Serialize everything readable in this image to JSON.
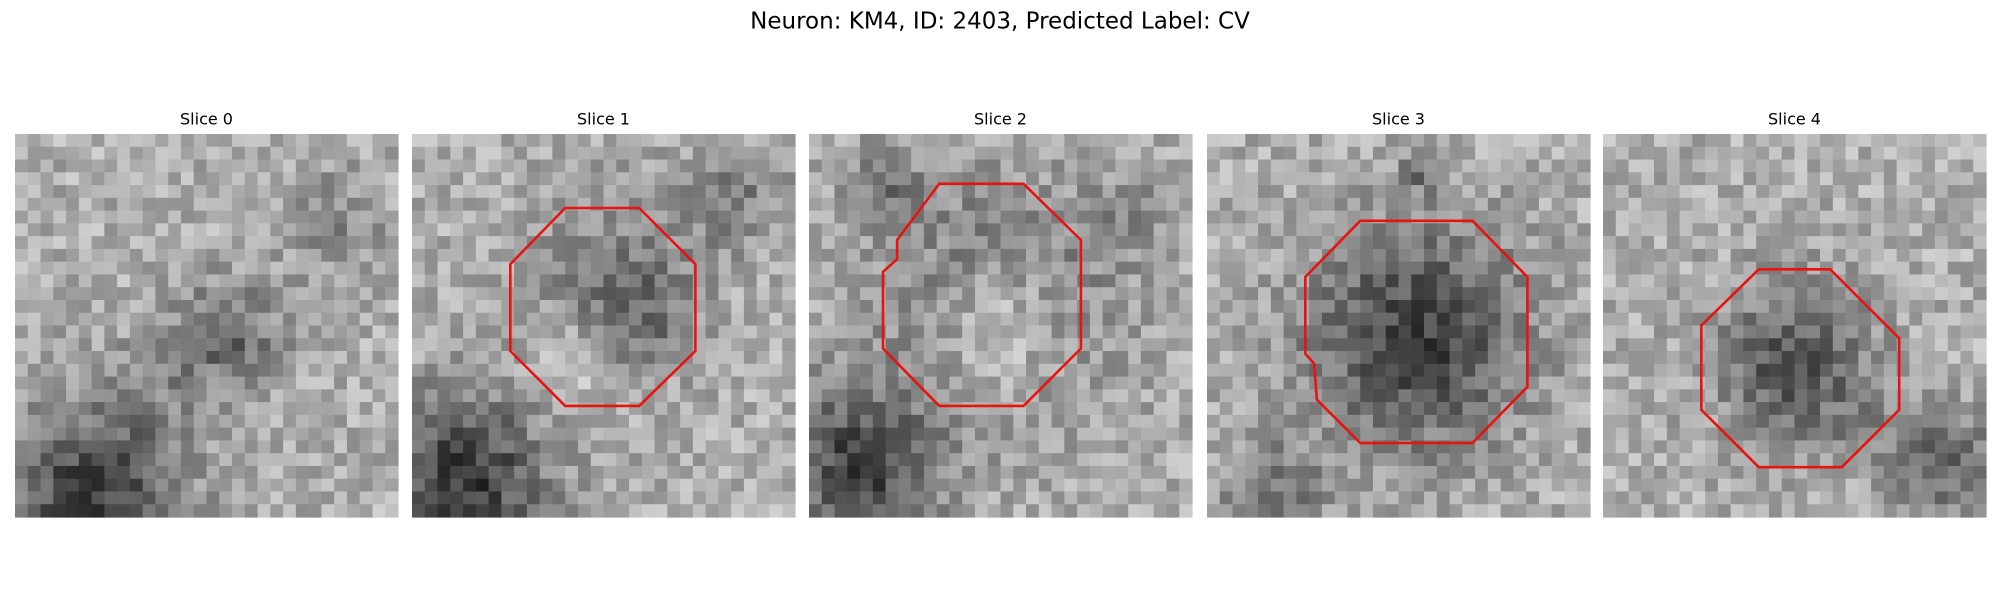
{
  "title": "Neuron: KM4, ID: 2403, Predicted Label: CV",
  "panels": [
    {
      "title": "Slice 0"
    },
    {
      "title": "Slice 1"
    },
    {
      "title": "Slice 2"
    },
    {
      "title": "Slice 3"
    },
    {
      "title": "Slice 4"
    }
  ]
}
